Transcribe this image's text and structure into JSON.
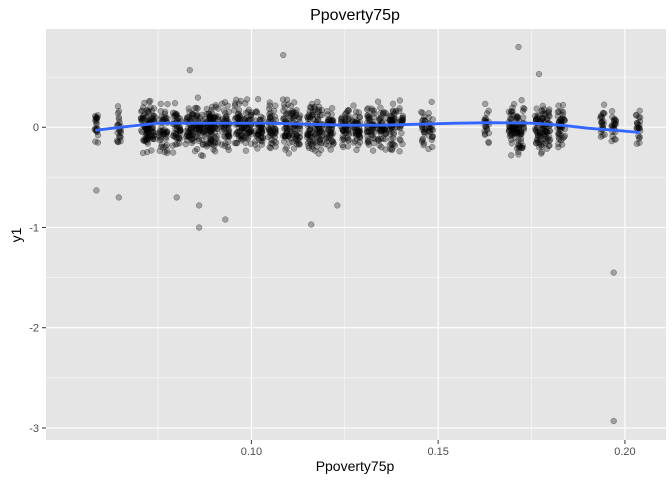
{
  "chart_data": {
    "type": "scatter",
    "title": "Ppoverty75p",
    "xlabel": "Ppoverty75p",
    "ylabel": "y1",
    "xlim": [
      0.045,
      0.211
    ],
    "ylim": [
      -3.12,
      0.98
    ],
    "x_ticks": [
      0.1,
      0.15,
      0.2
    ],
    "x_tick_labels": [
      "0.10",
      "0.15",
      "0.20"
    ],
    "y_ticks": [
      -3,
      -2,
      -1,
      0
    ],
    "y_tick_labels": [
      "-3",
      "-2",
      "-1",
      "0"
    ],
    "grid": true,
    "legend": "none",
    "colors": {
      "panel": "#e5e5e5",
      "grid_major": "#ffffff",
      "points": "#000000",
      "smooth": "#3366ff"
    },
    "point_opacity": 0.3,
    "x_groups": [
      0.0585,
      0.0645,
      0.0715,
      0.073,
      0.0765,
      0.08,
      0.0835,
      0.086,
      0.0885,
      0.09,
      0.093,
      0.0965,
      0.099,
      0.102,
      0.1055,
      0.1095,
      0.112,
      0.116,
      0.118,
      0.121,
      0.125,
      0.128,
      0.132,
      0.135,
      0.138,
      0.14,
      0.146,
      0.148,
      0.163,
      0.17,
      0.172,
      0.177,
      0.179,
      0.183,
      0.194,
      0.197,
      0.2035
    ],
    "outliers": [
      {
        "x": 0.0585,
        "y": -0.63
      },
      {
        "x": 0.0645,
        "y": -0.7
      },
      {
        "x": 0.08,
        "y": -0.7
      },
      {
        "x": 0.0835,
        "y": 0.57
      },
      {
        "x": 0.086,
        "y": -0.78
      },
      {
        "x": 0.086,
        "y": -1.0
      },
      {
        "x": 0.093,
        "y": -0.92
      },
      {
        "x": 0.1085,
        "y": 0.72
      },
      {
        "x": 0.116,
        "y": -0.97
      },
      {
        "x": 0.123,
        "y": -0.78
      },
      {
        "x": 0.1715,
        "y": 0.8
      },
      {
        "x": 0.177,
        "y": 0.53
      },
      {
        "x": 0.197,
        "y": -1.45
      },
      {
        "x": 0.197,
        "y": -2.93
      }
    ],
    "smooth_line": {
      "x": [
        0.0585,
        0.065,
        0.075,
        0.085,
        0.095,
        0.105,
        0.115,
        0.125,
        0.135,
        0.145,
        0.155,
        0.165,
        0.175,
        0.183,
        0.19,
        0.197,
        0.2035
      ],
      "y": [
        -0.03,
        0.0,
        0.04,
        0.04,
        0.04,
        0.04,
        0.03,
        0.02,
        0.02,
        0.03,
        0.04,
        0.045,
        0.04,
        0.02,
        -0.01,
        -0.03,
        -0.05
      ]
    }
  }
}
